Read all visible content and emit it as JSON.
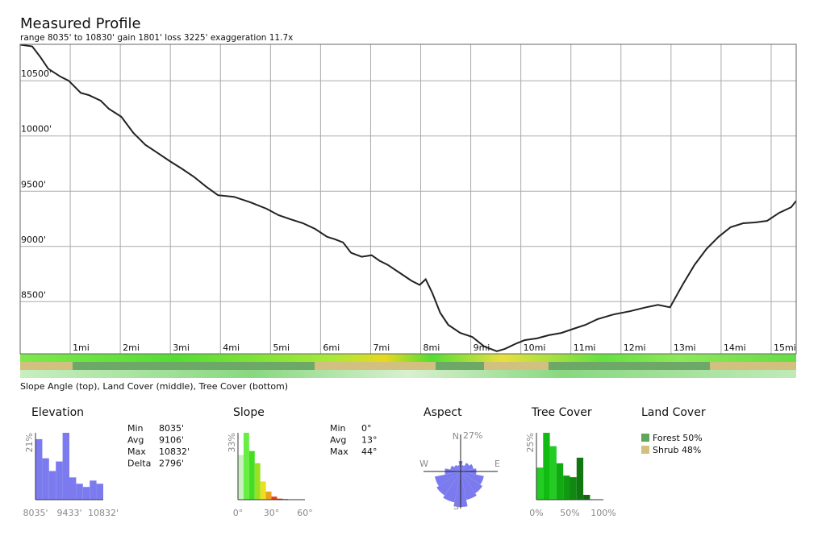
{
  "chart_data": [
    {
      "type": "line",
      "title": "Measured Profile",
      "subtitle": "range 8035' to 10830'  gain 1801'  loss 3225'  exaggeration 11.7x",
      "caption": "Slope Angle (top), Land Cover (middle), Tree Cover (bottom)",
      "x": [
        0,
        0.24,
        0.4,
        0.56,
        0.81,
        0.97,
        1.21,
        1.37,
        1.61,
        1.77,
        2.02,
        2.26,
        2.5,
        2.74,
        2.98,
        3.23,
        3.47,
        3.71,
        3.95,
        4.27,
        4.6,
        4.92,
        5.16,
        5.4,
        5.65,
        5.89,
        6.13,
        6.29,
        6.45,
        6.61,
        6.82,
        7.02,
        7.18,
        7.34,
        7.58,
        7.82,
        7.98,
        8.1,
        8.23,
        8.39,
        8.55,
        8.79,
        9.03,
        9.27,
        9.52,
        9.68,
        9.92,
        10.08,
        10.32,
        10.56,
        10.81,
        11.05,
        11.29,
        11.53,
        11.85,
        12.18,
        12.5,
        12.74,
        12.98,
        13.23,
        13.47,
        13.71,
        13.95,
        14.19,
        14.44,
        14.68,
        14.92,
        15.16,
        15.4,
        15.5
      ],
      "values": [
        10826,
        10812,
        10717,
        10609,
        10536,
        10500,
        10391,
        10370,
        10319,
        10246,
        10174,
        10029,
        9920,
        9848,
        9775,
        9703,
        9630,
        9543,
        9464,
        9449,
        9399,
        9341,
        9283,
        9246,
        9210,
        9159,
        9087,
        9065,
        9036,
        8942,
        8906,
        8920,
        8870,
        8833,
        8761,
        8688,
        8652,
        8703,
        8580,
        8399,
        8290,
        8217,
        8181,
        8094,
        8051,
        8072,
        8123,
        8152,
        8167,
        8196,
        8217,
        8254,
        8290,
        8341,
        8384,
        8413,
        8449,
        8471,
        8449,
        8652,
        8833,
        8978,
        9087,
        9174,
        9210,
        9217,
        9232,
        9304,
        9355,
        9413
      ],
      "color": "#222222",
      "grid": true,
      "xlim": [
        0,
        15.5
      ],
      "ylim": [
        8035,
        10830
      ],
      "xticks": [
        {
          "value": 1,
          "label": "1mi"
        },
        {
          "value": 2,
          "label": "2mi"
        },
        {
          "value": 3,
          "label": "3mi"
        },
        {
          "value": 4,
          "label": "4mi"
        },
        {
          "value": 5,
          "label": "5mi"
        },
        {
          "value": 6,
          "label": "6mi"
        },
        {
          "value": 7,
          "label": "7mi"
        },
        {
          "value": 8,
          "label": "8mi"
        },
        {
          "value": 9,
          "label": "9mi"
        },
        {
          "value": 10,
          "label": "10mi"
        },
        {
          "value": 11,
          "label": "11mi"
        },
        {
          "value": 12,
          "label": "12mi"
        },
        {
          "value": 13,
          "label": "13mi"
        },
        {
          "value": 14,
          "label": "14mi"
        },
        {
          "value": 15,
          "label": "15mi"
        }
      ],
      "yticks": [
        {
          "value": 8500,
          "label": "8500'"
        },
        {
          "value": 9000,
          "label": "9000'"
        },
        {
          "value": 9500,
          "label": "9500'"
        },
        {
          "value": 10000,
          "label": "10000'"
        },
        {
          "value": 10500,
          "label": "10500'"
        }
      ]
    },
    {
      "type": "histogram",
      "title": "Elevation",
      "bins": [
        8035,
        8315,
        8594,
        8874,
        9154,
        9433,
        9713,
        9993,
        10273,
        10552,
        10832
      ],
      "values": [
        19,
        13,
        9,
        12,
        21,
        7,
        5,
        4,
        6,
        5
      ],
      "color": "#7b7bef",
      "xlim": [
        8035,
        10832
      ],
      "ylim": [
        0,
        21
      ],
      "xticks": [
        {
          "value": 8035,
          "label": "8035'"
        },
        {
          "value": 9433,
          "label": "9433'"
        },
        {
          "value": 10832,
          "label": "10832'"
        }
      ],
      "yticks": [
        {
          "value": 21,
          "label": "21%"
        }
      ],
      "stats": [
        [
          "Min",
          "8035'"
        ],
        [
          "Avg",
          "9106'"
        ],
        [
          "Max",
          "10832'"
        ],
        [
          "Delta",
          "2796'"
        ]
      ]
    },
    {
      "type": "histogram",
      "title": "Slope",
      "bins": [
        0,
        5,
        10,
        15,
        20,
        25,
        30,
        35,
        40,
        45,
        50,
        55,
        60
      ],
      "values": [
        22,
        33,
        24,
        18,
        9,
        4,
        1.5,
        0.5,
        0.3,
        0,
        0,
        0
      ],
      "colors": [
        "#c8f0c0",
        "#66ee44",
        "#44dd22",
        "#99e022",
        "#e8e020",
        "#f0a020",
        "#e04010",
        "#c02010",
        "#a01010",
        "#a01010",
        "#a01010",
        "#a01010"
      ],
      "xlim": [
        0,
        60
      ],
      "ylim": [
        0,
        33
      ],
      "xticks": [
        {
          "value": 0,
          "label": "0°"
        },
        {
          "value": 30,
          "label": "30°"
        },
        {
          "value": 60,
          "label": "60°"
        }
      ],
      "yticks": [
        {
          "value": 33,
          "label": "33%"
        }
      ],
      "stats": [
        [
          "Min",
          "0°"
        ],
        [
          "Avg",
          "13°"
        ],
        [
          "Max",
          "44°"
        ]
      ]
    },
    {
      "type": "rose",
      "title": "Aspect",
      "values": [
        8,
        5,
        8,
        10,
        12,
        18,
        20,
        22,
        27,
        24,
        22,
        20,
        12,
        8,
        6,
        5
      ],
      "color": "#7b7bef",
      "rlim": [
        0,
        27
      ],
      "rticks": [
        {
          "value": 27,
          "label": "27%"
        }
      ],
      "direction_labels": [
        "N",
        "E",
        "S",
        "W"
      ]
    },
    {
      "type": "histogram",
      "title": "Tree Cover",
      "bins": [
        0,
        10,
        20,
        30,
        40,
        50,
        60,
        70,
        80,
        90,
        100
      ],
      "values": [
        12,
        25,
        20,
        13.6,
        9,
        8.4,
        15.7,
        1.8,
        0,
        0
      ],
      "colors": [
        "#22cc22",
        "#11bb11",
        "#22cc22",
        "#11aa11",
        "#119911",
        "#118811",
        "#117711",
        "#116611",
        "#116611",
        "#116611"
      ],
      "xlim": [
        0,
        100
      ],
      "ylim": [
        0,
        25
      ],
      "xticks": [
        {
          "value": 0,
          "label": "0%"
        },
        {
          "value": 50,
          "label": "50%"
        },
        {
          "value": 100,
          "label": "100%"
        }
      ],
      "yticks": [
        {
          "value": 25,
          "label": "25%"
        }
      ]
    },
    {
      "type": "legend",
      "title": "Land Cover",
      "categories": [
        "Forest",
        "Shrub"
      ],
      "values": [
        50,
        48
      ],
      "value_labels": [
        "50%",
        "48%"
      ],
      "colors": [
        "#5fa55a",
        "#d2c080"
      ]
    }
  ]
}
